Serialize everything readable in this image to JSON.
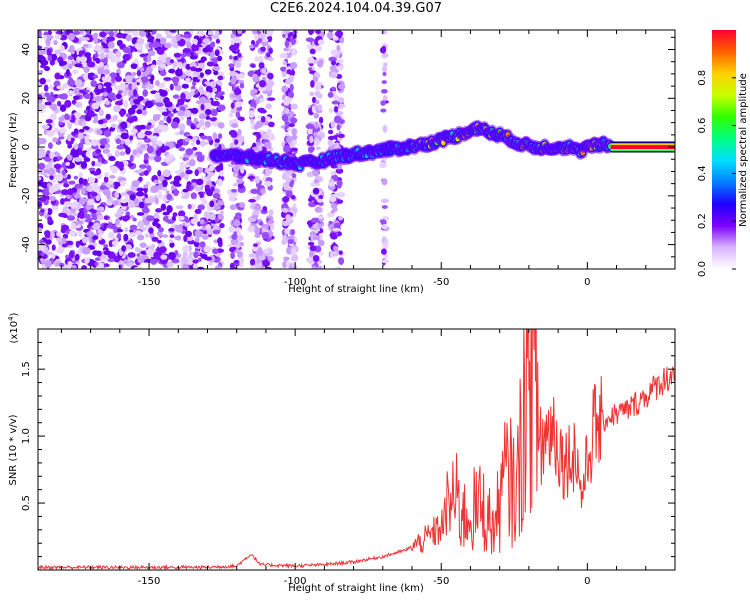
{
  "chart_data": [
    {
      "type": "heatmap",
      "title": "C2E6.2024.104.04.39.G07",
      "xlabel": "Height of straight line (km)",
      "ylabel": "Frequency (Hz)",
      "xlim": [
        -188,
        30
      ],
      "ylim": [
        -50,
        48
      ],
      "xticks": [
        -150,
        -100,
        -50,
        0
      ],
      "yticks": [
        -40,
        -20,
        0,
        20,
        40
      ],
      "colorbar": {
        "label": "Normalized spectral amplitude",
        "range": [
          0,
          1
        ],
        "ticks": [
          "0.0",
          "0.2",
          "0.4",
          "0.6",
          "0.8"
        ],
        "colormap": [
          "#ffffff",
          "#d9b3ff",
          "#7a00ff",
          "#1d00ff",
          "#0080ff",
          "#00e0ff",
          "#00ff80",
          "#30ff00",
          "#c8ff00",
          "#ffd000",
          "#ff6000",
          "#ff0030"
        ]
      },
      "signal_track": [
        {
          "x": -128,
          "f": -3
        },
        {
          "x": -123,
          "f": -3.5
        },
        {
          "x": -118,
          "f": -4
        },
        {
          "x": -110,
          "f": -5
        },
        {
          "x": -104,
          "f": -6
        },
        {
          "x": -98,
          "f": -7
        },
        {
          "x": -92,
          "f": -6
        },
        {
          "x": -86,
          "f": -4
        },
        {
          "x": -80,
          "f": -3
        },
        {
          "x": -74,
          "f": -2
        },
        {
          "x": -68,
          "f": -1
        },
        {
          "x": -62,
          "f": 0
        },
        {
          "x": -56,
          "f": 1
        },
        {
          "x": -50,
          "f": 3
        },
        {
          "x": -44,
          "f": 5
        },
        {
          "x": -40,
          "f": 7
        },
        {
          "x": -37,
          "f": 8
        },
        {
          "x": -34,
          "f": 6
        },
        {
          "x": -30,
          "f": 5
        },
        {
          "x": -26,
          "f": 3
        },
        {
          "x": -22,
          "f": 1
        },
        {
          "x": -18,
          "f": 0
        },
        {
          "x": -12,
          "f": 0
        },
        {
          "x": -6,
          "f": 0
        },
        {
          "x": -3,
          "f": -2
        },
        {
          "x": 0,
          "f": 0
        },
        {
          "x": 5,
          "f": 1
        },
        {
          "x": 10,
          "f": 0
        },
        {
          "x": 30,
          "f": 0
        }
      ]
    },
    {
      "type": "line",
      "xlabel": "Height of straight line (km)",
      "ylabel": "SNR (10 * v/v)",
      "scale_label": "(x10",
      "scale_exp": "4",
      "scale_close": ")",
      "xlim": [
        -188,
        30
      ],
      "ylim": [
        0,
        1.8
      ],
      "xticks": [
        -150,
        -100,
        -50,
        0
      ],
      "yticks": [
        0.5,
        1.0,
        1.5
      ],
      "ytick_labels": [
        "0.5",
        "1.0",
        "1.5"
      ],
      "series": [
        {
          "color": "#ee3333",
          "points": [
            [
              -188,
              0.02
            ],
            [
              -170,
              0.02
            ],
            [
              -150,
              0.02
            ],
            [
              -130,
              0.02
            ],
            [
              -120,
              0.03
            ],
            [
              -115,
              0.12
            ],
            [
              -112,
              0.04
            ],
            [
              -100,
              0.03
            ],
            [
              -90,
              0.04
            ],
            [
              -80,
              0.06
            ],
            [
              -70,
              0.1
            ],
            [
              -62,
              0.15
            ],
            [
              -56,
              0.22
            ],
            [
              -50,
              0.32
            ],
            [
              -46,
              0.55
            ],
            [
              -42,
              0.4
            ],
            [
              -36,
              0.48
            ],
            [
              -32,
              0.3
            ],
            [
              -28,
              0.7
            ],
            [
              -24,
              0.6
            ],
            [
              -21,
              1.4
            ],
            [
              -19,
              1.7
            ],
            [
              -16,
              0.9
            ],
            [
              -12,
              1.1
            ],
            [
              -8,
              0.8
            ],
            [
              -4,
              0.9
            ],
            [
              -2,
              0.55
            ],
            [
              2,
              1.05
            ],
            [
              8,
              1.15
            ],
            [
              14,
              1.2
            ],
            [
              20,
              1.3
            ],
            [
              25,
              1.4
            ],
            [
              30,
              1.48
            ]
          ]
        }
      ]
    }
  ]
}
